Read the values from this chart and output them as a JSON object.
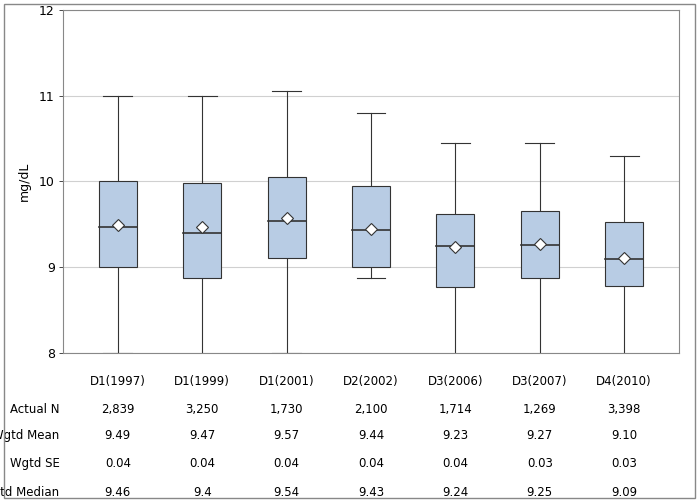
{
  "categories": [
    "D1(1997)",
    "D1(1999)",
    "D1(2001)",
    "D2(2002)",
    "D3(2006)",
    "D3(2007)",
    "D4(2010)"
  ],
  "actual_n": [
    "2,839",
    "3,250",
    "1,730",
    "2,100",
    "1,714",
    "1,269",
    "3,398"
  ],
  "wgtd_mean": [
    "9.49",
    "9.47",
    "9.57",
    "9.44",
    "9.23",
    "9.27",
    "9.10"
  ],
  "wgtd_se": [
    "0.04",
    "0.04",
    "0.04",
    "0.04",
    "0.04",
    "0.03",
    "0.03"
  ],
  "wgtd_median": [
    "9.46",
    "9.4",
    "9.54",
    "9.43",
    "9.24",
    "9.25",
    "9.09"
  ],
  "box_q1": [
    9.0,
    8.87,
    9.1,
    9.0,
    8.77,
    8.87,
    8.78
  ],
  "box_median": [
    9.46,
    9.4,
    9.54,
    9.43,
    9.24,
    9.25,
    9.09
  ],
  "box_q3": [
    10.0,
    9.98,
    10.05,
    9.95,
    9.62,
    9.65,
    9.52
  ],
  "whisker_lo": [
    8.0,
    7.95,
    8.0,
    8.87,
    7.72,
    7.78,
    7.72
  ],
  "whisker_hi": [
    11.0,
    11.0,
    11.05,
    10.8,
    10.45,
    10.45,
    10.3
  ],
  "mean_vals": [
    9.49,
    9.47,
    9.57,
    9.44,
    9.23,
    9.27,
    9.1
  ],
  "box_color": "#b8cce4",
  "box_edge_color": "#333333",
  "whisker_color": "#333333",
  "mean_marker_facecolor": "white",
  "mean_marker_edgecolor": "#333333",
  "ylabel": "mg/dL",
  "ylim": [
    8.0,
    12.0
  ],
  "yticks": [
    8,
    9,
    10,
    11,
    12
  ],
  "grid_color": "#d0d0d0",
  "background_color": "white",
  "border_color": "#888888",
  "table_row_labels": [
    "Actual N",
    "Wgtd Mean",
    "Wgtd SE",
    "Wgtd Median"
  ],
  "box_width": 0.45
}
